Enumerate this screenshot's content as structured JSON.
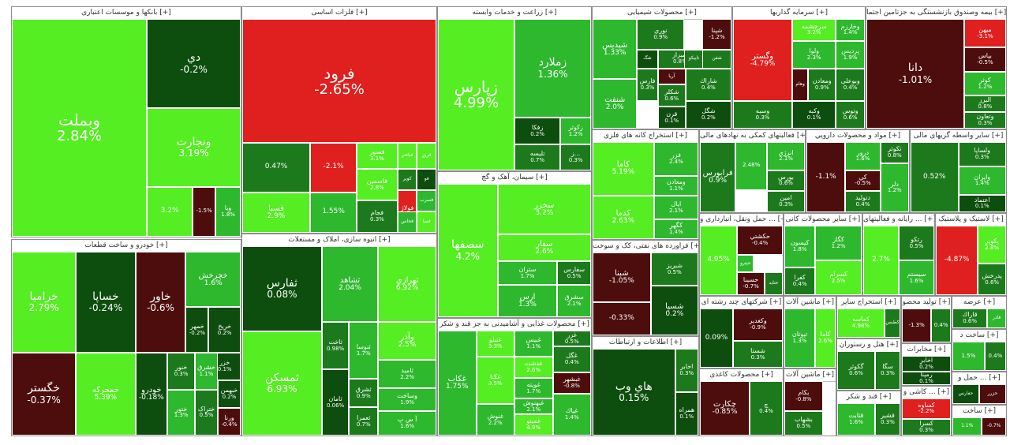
{
  "chart_data": {
    "type": "treemap",
    "title": "",
    "color_scale": {
      "strong_up": "#55ee22",
      "up": "#2eb82e",
      "mild_up": "#1c7a1c",
      "flat": "#0d4d0d",
      "down": "#4d0d0d",
      "strong_down": "#e01f1f"
    },
    "sectors": [
      {
        "name": "بانکها و موسسات اعتباری [+]",
        "tiles": [
          {
            "symbol": "وبملت",
            "change": 2.84
          },
          {
            "symbol": "دي",
            "change": -0.2
          },
          {
            "symbol": "ونجارت",
            "change": 3.19
          },
          {
            "symbol": "",
            "change": 3.2
          },
          {
            "symbol": "",
            "change": -1.5
          },
          {
            "symbol": "ويا",
            "change": 1.8
          }
        ]
      },
      {
        "name": "فلزات اساسی [+]",
        "tiles": [
          {
            "symbol": "فرود",
            "change": -2.65
          },
          {
            "symbol": "",
            "change": 0.47
          },
          {
            "symbol": "",
            "change": -2.1
          },
          {
            "symbol": "فسوز",
            "change": 3.1
          },
          {
            "symbol": "فباهنر",
            "change": 3.2
          },
          {
            "symbol": "فروز",
            "change": 2.5
          },
          {
            "symbol": "فسبا",
            "change": 2.9
          },
          {
            "symbol": "",
            "change": 1.55
          },
          {
            "symbol": "",
            "change": 0.8
          },
          {
            "symbol": "فو",
            "change": 0.2
          },
          {
            "symbol": "فسرب",
            "change": 1.1
          },
          {
            "symbol": "فسا",
            "change": 3.4
          },
          {
            "symbol": "فاسمين",
            "change": 2.8
          },
          {
            "symbol": "فجام",
            "change": 0.3
          },
          {
            "symbol": "فولاژ",
            "change": -4.1
          },
          {
            "symbol": "فخاس",
            "change": 1.9
          },
          {
            "symbol": "كوير",
            "change": 0.9
          }
        ]
      },
      {
        "name": "زراعت و خدمات وابسته [+]",
        "tiles": [
          {
            "symbol": "زپارس",
            "change": 4.99
          },
          {
            "symbol": "زملارد",
            "change": 1.36
          },
          {
            "symbol": "زفكا",
            "change": 0.2
          },
          {
            "symbol": "زكوثر",
            "change": 1.2
          },
          {
            "symbol": "تليسه",
            "change": 0.7
          },
          {
            "symbol": "ز...",
            "change": 0.3
          }
        ]
      },
      {
        "name": "محصولات شیمیایی [+]",
        "tiles": [
          {
            "symbol": "شپدیس",
            "change": 1.33
          },
          {
            "symbol": "نوري",
            "change": 0.9
          },
          {
            "symbol": "شپنا",
            "change": -1.2
          },
          {
            "symbol": "شيراز",
            "change": 0.8
          },
          {
            "symbol": "تاپيكو",
            "change": 0.4
          },
          {
            "symbol": "شگ",
            "change": 0.2
          },
          {
            "symbol": "آريا",
            "change": -0.6
          },
          {
            "symbol": "شفن",
            "change": 0.5
          },
          {
            "symbol": "فارس",
            "change": 0.3
          },
          {
            "symbol": "شكلر",
            "change": 0.6
          },
          {
            "symbol": "قرن",
            "change": 0.1
          },
          {
            "symbol": "شنفت",
            "change": 2.0
          },
          {
            "symbol": "شاراك",
            "change": 0.4
          },
          {
            "symbol": "شگل",
            "change": 0.2
          }
        ]
      },
      {
        "name": "سرمایه گذاریها [+]",
        "tiles": [
          {
            "symbol": "وگستر",
            "change": -4.79
          },
          {
            "symbol": "سرچشمه",
            "change": 3.2
          },
          {
            "symbol": "وخارزم",
            "change": 1.4
          },
          {
            "symbol": "ولوا",
            "change": 2.3
          },
          {
            "symbol": "پردیس",
            "change": 1.9
          },
          {
            "symbol": "وبوعلی",
            "change": 0.4
          },
          {
            "symbol": "وهام",
            "change": -1.1
          },
          {
            "symbol": "ومعادن",
            "change": 0.9
          },
          {
            "symbol": "وكبه",
            "change": 0.1
          },
          {
            "symbol": "وسبه",
            "change": 0.3
          },
          {
            "symbol": "وتوس",
            "change": 0.6
          }
        ]
      },
      {
        "name": "بیمه وصندوق بازنشستگی به جزتامین اجتما [+]",
        "tiles": [
          {
            "symbol": "دانا",
            "change": -1.01
          },
          {
            "symbol": "ميهن",
            "change": -3.1
          },
          {
            "symbol": "بپاس",
            "change": -0.5
          },
          {
            "symbol": "كوثر",
            "change": 1.2
          },
          {
            "symbol": "البرز",
            "change": 0.8
          },
          {
            "symbol": "وتعاون",
            "change": 0.3
          }
        ]
      },
      {
        "name": "خودرو و ساخت قطعات [+]",
        "tiles": [
          {
            "symbol": "خراميا",
            "change": 2.79
          },
          {
            "symbol": "خساپا",
            "change": -0.24
          },
          {
            "symbol": "خاور",
            "change": -0.6
          },
          {
            "symbol": "خمحور",
            "change": -4.99
          },
          {
            "symbol": "خمحركه",
            "change": 5.39
          },
          {
            "symbol": "خگستر",
            "change": -0.37
          },
          {
            "symbol": "خودرو",
            "change": -0.18
          },
          {
            "symbol": "خريخ",
            "change": 0.2
          },
          {
            "symbol": "خنور",
            "change": 0.3
          },
          {
            "symbol": "خزر",
            "change": 0.1
          },
          {
            "symbol": "ختور",
            "change": 1.3
          },
          {
            "symbol": "خشرق",
            "change": 1.1
          },
          {
            "symbol": "ختراک",
            "change": 0.5
          },
          {
            "symbol": "خبهمن",
            "change": 0.2
          },
          {
            "symbol": "خمهر",
            "change": -0.2
          },
          {
            "symbol": "ورنا",
            "change": -0.4
          },
          {
            "symbol": "خچرخش",
            "change": 1.6
          }
        ]
      },
      {
        "name": "انبوه سازی، املاک و مستغلات [+]",
        "tiles": [
          {
            "symbol": "ثفارس",
            "change": 0.08
          },
          {
            "symbol": "ثشاهد",
            "change": 2.04
          },
          {
            "symbol": "ثهرازي",
            "change": 6.92
          },
          {
            "symbol": "ثمسكن",
            "change": 6.93
          },
          {
            "symbol": "ثاخت",
            "change": 0.98
          },
          {
            "symbol": "ثامان",
            "change": 0.06
          },
          {
            "symbol": "وآذر",
            "change": 2.5
          },
          {
            "symbol": "ثنوسا",
            "change": 1.7
          },
          {
            "symbol": "ثامید",
            "change": 2.2
          },
          {
            "symbol": "وساخت",
            "change": 1.9
          },
          {
            "symbol": "ثشرق",
            "change": 0.9
          },
          {
            "symbol": "ثعمرا",
            "change": 0.7
          },
          {
            "symbol": "آ س پ",
            "change": 1.6
          },
          {
            "symbol": "ثنظام",
            "change": 0.2
          }
        ]
      },
      {
        "name": "سیمان، آهک و گچ [+]",
        "tiles": [
          {
            "symbol": "سصفها",
            "change": 4.2
          },
          {
            "symbol": "سفار",
            "change": 2.6
          },
          {
            "symbol": "سخزر",
            "change": 3.2
          },
          {
            "symbol": "ستران",
            "change": 1.7
          },
          {
            "symbol": "سفارس",
            "change": 0.5
          },
          {
            "symbol": "ارس",
            "change": 1.3
          },
          {
            "symbol": "سشرق",
            "change": 2.1
          },
          {
            "symbol": "ساربيل",
            "change": 0.6
          }
        ]
      },
      {
        "name": "استخراج کانه های فلزی [+]",
        "tiles": [
          {
            "symbol": "كاما",
            "change": 5.19
          },
          {
            "symbol": "فزر",
            "change": 2.4
          },
          {
            "symbol": "ومعادن",
            "change": 1.1
          },
          {
            "symbol": "كدما",
            "change": 2.63
          },
          {
            "symbol": "اپال",
            "change": 2.1
          },
          {
            "symbol": "كگهر",
            "change": 1.4
          }
        ]
      },
      {
        "name": "فعالیتهای کمکی به نهادهای مالی [+]",
        "tiles": [
          {
            "symbol": "فرابورس",
            "change": 0.9
          },
          {
            "symbol": "",
            "change": 2.48
          },
          {
            "symbol": "انرژي",
            "change": 2.1
          },
          {
            "symbol": "بورس",
            "change": 0.6
          },
          {
            "symbol": "امين",
            "change": 0.3
          }
        ]
      },
      {
        "name": "مواد و محصولات دارويي [+]",
        "tiles": [
          {
            "symbol": "",
            "change": -1.1
          },
          {
            "symbol": "دروز",
            "change": 1.6
          },
          {
            "symbol": "تكوثر",
            "change": 0.8
          },
          {
            "symbol": "كي",
            "change": -0.5
          },
          {
            "symbol": "دتوليد",
            "change": 0.4
          },
          {
            "symbol": "دلر",
            "change": 1.2
          }
        ]
      },
      {
        "name": "سایر واسطه گریهای مالی [+]",
        "tiles": [
          {
            "symbol": "",
            "change": 0.52
          },
          {
            "symbol": "ولساپا",
            "change": 0.3
          },
          {
            "symbol": "وايران",
            "change": 1.4
          },
          {
            "symbol": "اعتماد",
            "change": 0.1
          }
        ]
      },
      {
        "name": "فراورده های نفتی، کک و سوخت [+]",
        "tiles": [
          {
            "symbol": "شبنا",
            "change": -1.05
          },
          {
            "symbol": "",
            "change": -0.33
          },
          {
            "symbol": "شبريز",
            "change": 0.5
          },
          {
            "symbol": "شسپا",
            "change": 0.2
          },
          {
            "symbol": "شبندر",
            "change": -0.4
          },
          {
            "symbol": "شپاس",
            "change": 0.3
          }
        ]
      },
      {
        "name": "اطلاعات و ارتباطات [+]",
        "tiles": [
          {
            "symbol": "هاي وب",
            "change": 0.15
          },
          {
            "symbol": "اخابر",
            "change": 0.3
          },
          {
            "symbol": "همراه",
            "change": 0.1
          }
        ]
      },
      {
        "name": "محصولات غذایی و آشامیدنی به جز قند و شکر [+]",
        "tiles": [
          {
            "symbol": "غكاب",
            "change": 1.75
          },
          {
            "symbol": "غنيلو",
            "change": 3.3
          },
          {
            "symbol": "غبيس",
            "change": 1.1
          },
          {
            "symbol": "غزر",
            "change": 0.5
          },
          {
            "symbol": "غدشت",
            "change": 2.6
          },
          {
            "symbol": "غگل",
            "change": 0.4
          },
          {
            "symbol": "غويته",
            "change": 1.7
          },
          {
            "symbol": "غكيا",
            "change": 3.5
          },
          {
            "symbol": "غبهنوش",
            "change": 2.1
          },
          {
            "symbol": "غبشهر",
            "change": -0.8
          },
          {
            "symbol": "غمينو",
            "change": 4.9
          },
          {
            "symbol": "غنوش",
            "change": 2.2
          },
          {
            "symbol": "غپاك",
            "change": 1.4
          },
          {
            "symbol": "",
            "change": 4.85
          }
        ]
      },
      {
        "name": "حمل ونقل، انبارداری و ... [+]",
        "tiles": [
          {
            "symbol": "حكشتي",
            "change": -0.4
          },
          {
            "symbol": "حپترو",
            "change": 1.6
          },
          {
            "symbol": "حسينا",
            "change": -0.7
          },
          {
            "symbol": "",
            "change": 4.95
          },
          {
            "symbol": "حتايد",
            "change": 0.6
          }
        ]
      },
      {
        "name": "سایر محصولات کانی [+]",
        "tiles": [
          {
            "symbol": "كگاز",
            "change": 1.2
          },
          {
            "symbol": "كسرام",
            "change": 2.5
          },
          {
            "symbol": "كيسون",
            "change": 1.8
          },
          {
            "symbol": "كفرا",
            "change": 0.4
          }
        ]
      },
      {
        "name": "رایانه و فعالیتهای ... [+]",
        "tiles": [
          {
            "symbol": "",
            "change": 2.7
          },
          {
            "symbol": "رتكو",
            "change": 0.5
          },
          {
            "symbol": "سيستم",
            "change": 1.6
          }
        ]
      },
      {
        "name": "لاستیک و پلاستیک [+]",
        "tiles": [
          {
            "symbol": "",
            "change": -4.87
          },
          {
            "symbol": "پكوير",
            "change": 2.8
          },
          {
            "symbol": "پدرخش",
            "change": 0.6
          }
        ]
      },
      {
        "name": "شرکتهای چند رشته ای [+]",
        "tiles": [
          {
            "symbol": "وكغدير",
            "change": -0.9
          },
          {
            "symbol": "شستا",
            "change": 0.3
          },
          {
            "symbol": "",
            "change": 0.09
          }
        ]
      },
      {
        "name": "ماشین آلات [+]",
        "tiles": [
          {
            "symbol": "تپوتان",
            "change": 1.3
          },
          {
            "symbol": "كاما",
            "change": 2.6
          }
        ]
      },
      {
        "name": "استخراج سایر [+]",
        "tiles": [
          {
            "symbol": "كماسه",
            "change": 4.98
          },
          {
            "symbol": "كطبس",
            "change": 0.4
          }
        ]
      },
      {
        "name": "هتل و رستوران [+]",
        "tiles": [
          {
            "symbol": "گكوثر",
            "change": 0.6
          },
          {
            "symbol": "سگا",
            "change": 0.3
          }
        ]
      },
      {
        "name": "محصولات کاغذی [+]",
        "tiles": [
          {
            "symbol": "چكارت",
            "change": -0.85
          },
          {
            "symbol": "چ",
            "change": 0.4
          }
        ]
      },
      {
        "name": "ماشین آلات [+]",
        "tiles": [
          {
            "symbol": "بكام",
            "change": -0.8
          },
          {
            "symbol": "بشهاب",
            "change": 0.5
          }
        ]
      },
      {
        "name": "قند و شکر [+]",
        "tiles": [
          {
            "symbol": "قثابت",
            "change": 1.6
          },
          {
            "symbol": "قشير",
            "change": 0.3
          }
        ]
      },
      {
        "name": "تولید محصو [+]",
        "tiles": [
          {
            "symbol": "",
            "change": -1.3
          },
          {
            "symbol": "",
            "change": 0.4
          }
        ]
      },
      {
        "name": "مخابرات [+]",
        "tiles": [
          {
            "symbol": "اخابر",
            "change": 0.2
          },
          {
            "symbol": "رمپنا",
            "change": 0.1
          }
        ]
      },
      {
        "name": "کاشی و ... [+]",
        "tiles": [
          {
            "symbol": "كساوه",
            "change": -2.2
          },
          {
            "symbol": "كسرا",
            "change": 0.3
          }
        ]
      },
      {
        "name": "عرضه [+]",
        "tiles": [
          {
            "symbol": "قاراك",
            "change": 0.6
          },
          {
            "symbol": "فاذر",
            "change": 1.2
          }
        ]
      },
      {
        "name": "ساخت د [+]",
        "tiles": [
          {
            "symbol": "",
            "change": 1.5
          },
          {
            "symbol": "",
            "change": 0.4
          }
        ]
      },
      {
        "name": "حمل و ... [+]",
        "tiles": [
          {
            "symbol": "حفارس",
            "change": 0.2
          },
          {
            "symbol": "حزرر",
            "change": -0.5
          }
        ]
      },
      {
        "name": "ساخت [+]",
        "tiles": [
          {
            "symbol": "",
            "change": 1.1
          },
          {
            "symbol": "",
            "change": -0.7
          }
        ]
      }
    ]
  }
}
